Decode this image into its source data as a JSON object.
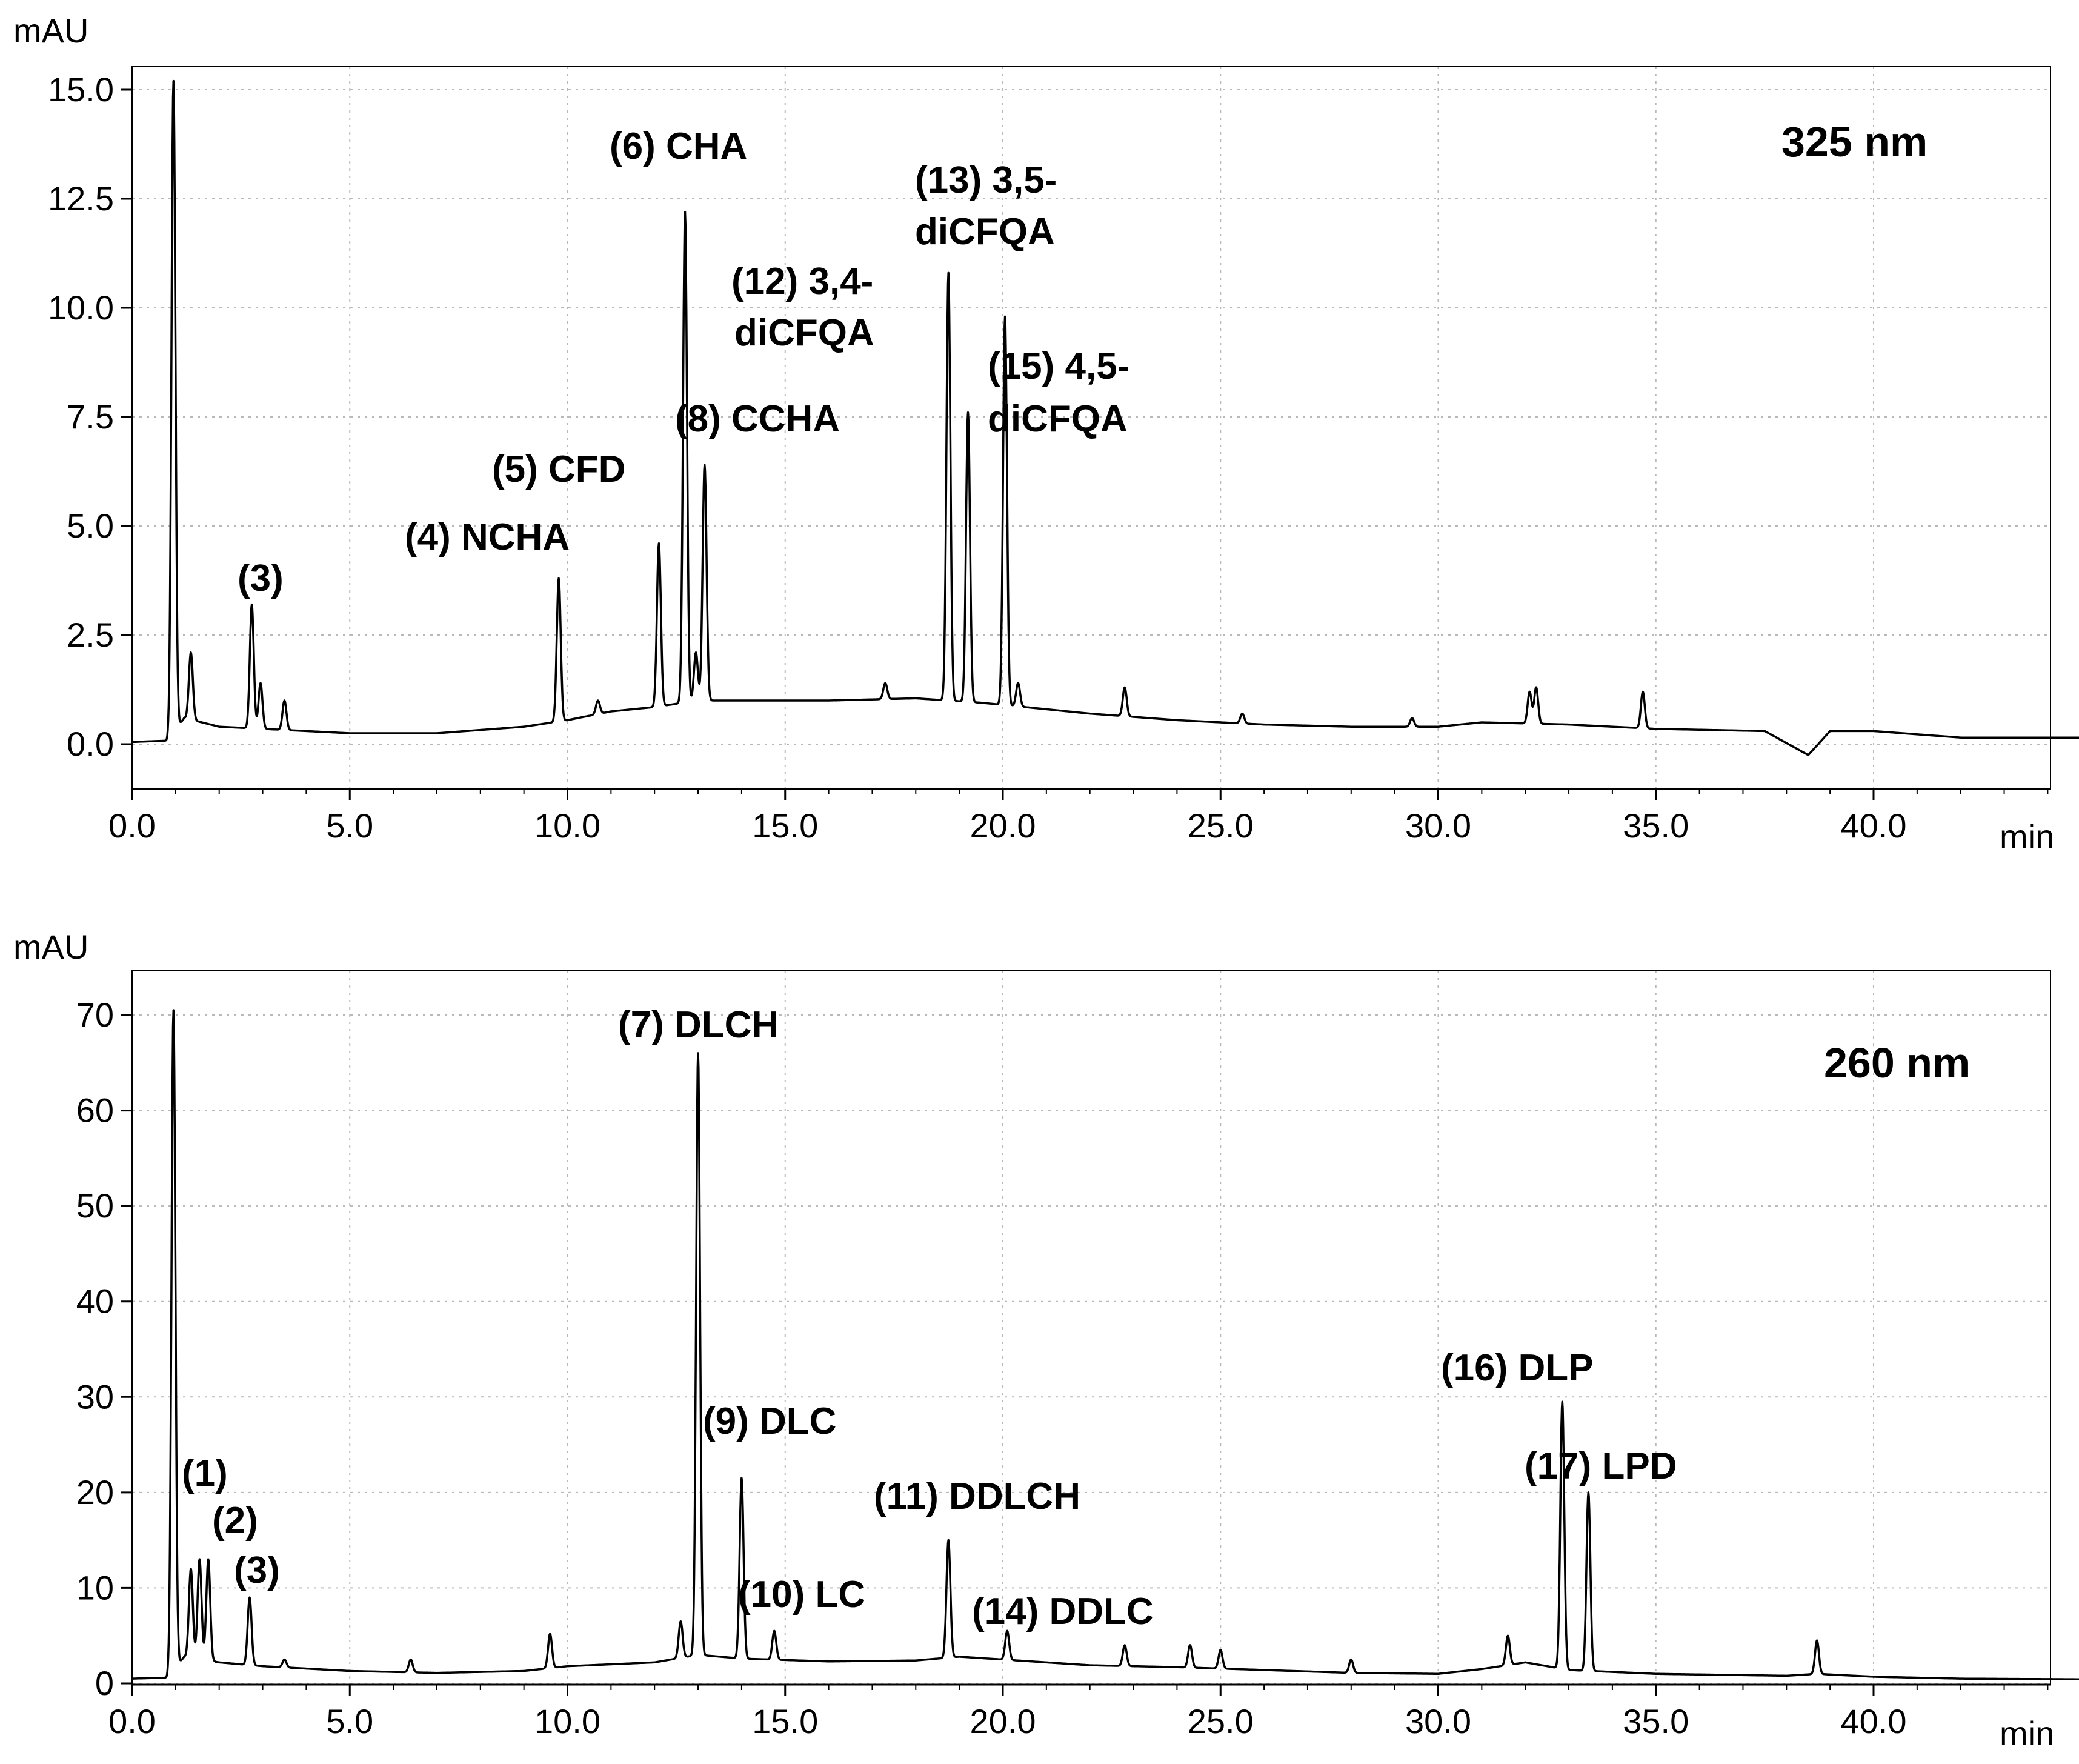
{
  "chart_data": [
    {
      "type": "line",
      "title": "325 nm",
      "ylabel": "mAU",
      "xlabel": "min",
      "xlim": [
        0,
        46
      ],
      "ylim": [
        -1,
        16
      ],
      "x_ticks": [
        "0.0",
        "5.0",
        "10.0",
        "15.0",
        "20.0",
        "25.0",
        "30.0",
        "35.0",
        "40.0"
      ],
      "y_ticks": [
        "0.0",
        "2.5",
        "5.0",
        "7.5",
        "10.0",
        "12.5",
        "15.0"
      ],
      "grid": true,
      "baseline": [
        [
          0,
          0.05
        ],
        [
          0.8,
          0.08
        ],
        [
          1.2,
          0.6
        ],
        [
          2,
          0.4
        ],
        [
          3,
          0.35
        ],
        [
          5,
          0.25
        ],
        [
          7,
          0.25
        ],
        [
          9,
          0.4
        ],
        [
          10,
          0.55
        ],
        [
          11,
          0.75
        ],
        [
          12,
          0.85
        ],
        [
          13,
          1.0
        ],
        [
          15,
          1.0
        ],
        [
          16,
          1.0
        ],
        [
          18,
          1.05
        ],
        [
          19.5,
          0.95
        ],
        [
          20.5,
          0.85
        ],
        [
          22,
          0.7
        ],
        [
          24,
          0.55
        ],
        [
          26,
          0.45
        ],
        [
          28,
          0.4
        ],
        [
          30,
          0.4
        ],
        [
          31,
          0.5
        ],
        [
          33,
          0.45
        ],
        [
          35,
          0.35
        ],
        [
          37.5,
          0.3
        ],
        [
          38.5,
          -0.25
        ],
        [
          39,
          0.3
        ],
        [
          40,
          0.3
        ],
        [
          42,
          0.15
        ],
        [
          46,
          0.15
        ]
      ],
      "peaks": [
        {
          "rt": 0.95,
          "h": 15.2,
          "label": ""
        },
        {
          "rt": 1.35,
          "h": 2.1,
          "label": ""
        },
        {
          "rt": 2.75,
          "h": 3.2,
          "label": "(3)"
        },
        {
          "rt": 2.95,
          "h": 1.4,
          "label": ""
        },
        {
          "rt": 3.5,
          "h": 1.0,
          "label": ""
        },
        {
          "rt": 9.8,
          "h": 3.8,
          "label": "(4) NCHA"
        },
        {
          "rt": 10.7,
          "h": 1.0,
          "label": ""
        },
        {
          "rt": 12.1,
          "h": 4.6,
          "label": "(5) CFD"
        },
        {
          "rt": 12.7,
          "h": 12.2,
          "label": "(6) CHA"
        },
        {
          "rt": 12.95,
          "h": 2.1,
          "label": ""
        },
        {
          "rt": 13.15,
          "h": 6.4,
          "label": "(8) CCHA"
        },
        {
          "rt": 17.3,
          "h": 1.4,
          "label": ""
        },
        {
          "rt": 18.75,
          "h": 10.8,
          "label": "(12) 3,4-diCFQA"
        },
        {
          "rt": 19.2,
          "h": 7.6,
          "label": "(13) 3,5-diCFQA"
        },
        {
          "rt": 20.05,
          "h": 9.8,
          "label": "(15) 4,5-diCFQA"
        },
        {
          "rt": 20.35,
          "h": 1.4,
          "label": ""
        },
        {
          "rt": 22.8,
          "h": 1.3,
          "label": ""
        },
        {
          "rt": 25.5,
          "h": 0.7,
          "label": ""
        },
        {
          "rt": 29.4,
          "h": 0.6,
          "label": ""
        },
        {
          "rt": 32.1,
          "h": 1.2,
          "label": ""
        },
        {
          "rt": 32.25,
          "h": 1.3,
          "label": ""
        },
        {
          "rt": 34.7,
          "h": 1.2,
          "label": ""
        }
      ]
    },
    {
      "type": "line",
      "title": "260 nm",
      "ylabel": "mAU",
      "xlabel": "min",
      "xlim": [
        0,
        46
      ],
      "ylim": [
        0,
        75
      ],
      "x_ticks": [
        "0.0",
        "5.0",
        "10.0",
        "15.0",
        "20.0",
        "25.0",
        "30.0",
        "35.0",
        "40.0"
      ],
      "y_ticks": [
        "0",
        "10",
        "20",
        "30",
        "40",
        "50",
        "60",
        "70"
      ],
      "grid": true,
      "baseline": [
        [
          0,
          0.5
        ],
        [
          0.8,
          0.6
        ],
        [
          1.2,
          2.8
        ],
        [
          2,
          2.2
        ],
        [
          3,
          1.8
        ],
        [
          5,
          1.3
        ],
        [
          7,
          1.1
        ],
        [
          9,
          1.3
        ],
        [
          10,
          1.8
        ],
        [
          12,
          2.2
        ],
        [
          13,
          3.0
        ],
        [
          14,
          2.6
        ],
        [
          16,
          2.3
        ],
        [
          18,
          2.4
        ],
        [
          19,
          2.8
        ],
        [
          20,
          2.5
        ],
        [
          22,
          1.9
        ],
        [
          24,
          1.7
        ],
        [
          26,
          1.4
        ],
        [
          28,
          1.1
        ],
        [
          30,
          1.0
        ],
        [
          31,
          1.5
        ],
        [
          32,
          2.2
        ],
        [
          33,
          1.4
        ],
        [
          35,
          1.0
        ],
        [
          38,
          0.8
        ],
        [
          38.7,
          1.0
        ],
        [
          40,
          0.7
        ],
        [
          42,
          0.5
        ],
        [
          46,
          0.4
        ]
      ],
      "peaks": [
        {
          "rt": 0.95,
          "h": 70.5,
          "label": ""
        },
        {
          "rt": 1.35,
          "h": 12.0,
          "label": "(1)"
        },
        {
          "rt": 1.55,
          "h": 13.0,
          "label": "(2)"
        },
        {
          "rt": 1.75,
          "h": 13.0,
          "label": ""
        },
        {
          "rt": 2.7,
          "h": 9.0,
          "label": "(3)"
        },
        {
          "rt": 3.5,
          "h": 2.5,
          "label": ""
        },
        {
          "rt": 6.4,
          "h": 2.5,
          "label": ""
        },
        {
          "rt": 9.6,
          "h": 5.2,
          "label": ""
        },
        {
          "rt": 12.6,
          "h": 6.5,
          "label": ""
        },
        {
          "rt": 13.0,
          "h": 66.0,
          "label": "(7) DLCH"
        },
        {
          "rt": 14.0,
          "h": 21.5,
          "label": "(9) DLC"
        },
        {
          "rt": 14.75,
          "h": 5.5,
          "label": "(10) LC"
        },
        {
          "rt": 18.75,
          "h": 15.0,
          "label": "(11) DDLCH"
        },
        {
          "rt": 20.1,
          "h": 5.5,
          "label": "(14) DDLC"
        },
        {
          "rt": 22.8,
          "h": 4.0,
          "label": ""
        },
        {
          "rt": 24.3,
          "h": 4.0,
          "label": ""
        },
        {
          "rt": 25.0,
          "h": 3.5,
          "label": ""
        },
        {
          "rt": 28.0,
          "h": 2.5,
          "label": ""
        },
        {
          "rt": 31.6,
          "h": 5.0,
          "label": ""
        },
        {
          "rt": 32.85,
          "h": 29.5,
          "label": "(16) DLP"
        },
        {
          "rt": 33.45,
          "h": 20.0,
          "label": "(17) LPD"
        },
        {
          "rt": 38.7,
          "h": 4.5,
          "label": ""
        }
      ]
    }
  ],
  "labels": {
    "top_unit": "mAU",
    "top_xunit": "min",
    "top_wavelength": "325 nm",
    "bottom_unit": "mAU",
    "bottom_xunit": "min",
    "bottom_wavelength": "260 nm",
    "top_peaks": [
      "(3)",
      "(4) NCHA",
      "(5) CFD",
      "(6) CHA",
      "(8) CCHA",
      "(12) 3,4-",
      "diCFQA",
      "(13) 3,5-",
      "diCFQA",
      "(15) 4,5-",
      "diCFQA"
    ],
    "bottom_peaks": [
      "(1)",
      "(2)",
      "(3)",
      "(7) DLCH",
      "(9) DLC",
      "(10) LC",
      "(11) DDLCH",
      "(14) DDLC",
      "(16) DLP",
      "(17) LPD"
    ]
  }
}
